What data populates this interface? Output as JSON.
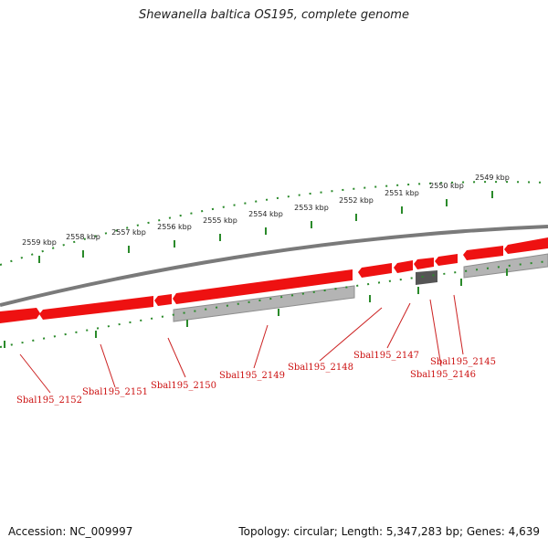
{
  "title": "Shewanella baltica OS195, complete genome",
  "accession": "Accession: NC_009997",
  "summary": "Topology: circular; Length: 5,347,283 bp; Genes: 4,639",
  "colors": {
    "forward_gene": "#ee1111",
    "reverse_gene": "#b4b4b4",
    "dark_gene": "#555555",
    "backbone": "#7a7a7a",
    "tick": "#2a8a2a",
    "label": "#cc1111",
    "leader": "#cc2222"
  },
  "kbp_labels": [
    "2549 kbp",
    "2550 kbp",
    "2551 kbp",
    "2552 kbp",
    "2553 kbp",
    "2554 kbp",
    "2555 kbp",
    "2556 kbp",
    "2557 kbp",
    "2558 kbp",
    "2559 kbp"
  ],
  "gene_labels": [
    "Sbal195_2152",
    "Sbal195_2151",
    "Sbal195_2150",
    "Sbal195_2149",
    "Sbal195_2148",
    "Sbal195_2147",
    "Sbal195_2146",
    "Sbal195_2145"
  ]
}
